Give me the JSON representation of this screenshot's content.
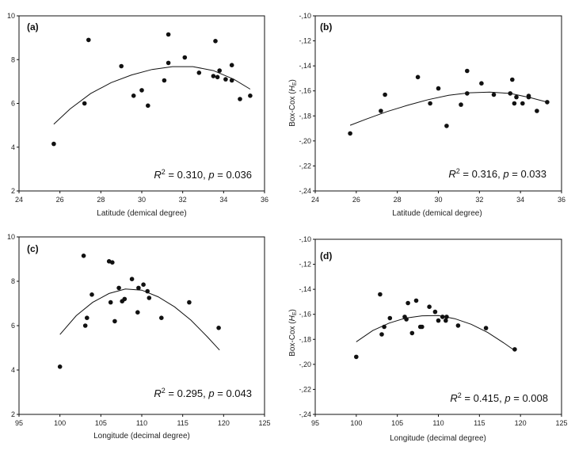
{
  "chart_data": [
    {
      "type": "scatter",
      "panel": "(a)",
      "xlabel": "Latitude (demical degree)",
      "ylabel": "",
      "xlim": [
        24,
        36
      ],
      "ylim": [
        2,
        10
      ],
      "xticks": [
        24,
        26,
        28,
        30,
        32,
        34,
        36
      ],
      "yticks": [
        2,
        4,
        6,
        8,
        10
      ],
      "ytick_labels": [
        "2",
        "4",
        "6",
        "8",
        "10"
      ],
      "annotation": {
        "r2": "0.310",
        "p": "0.036"
      },
      "points": [
        [
          25.7,
          4.15
        ],
        [
          27.2,
          6.0
        ],
        [
          27.4,
          8.9
        ],
        [
          29.0,
          7.7
        ],
        [
          29.6,
          6.35
        ],
        [
          30.0,
          6.6
        ],
        [
          30.3,
          5.9
        ],
        [
          31.1,
          7.05
        ],
        [
          31.3,
          9.15
        ],
        [
          31.3,
          7.85
        ],
        [
          32.1,
          8.1
        ],
        [
          32.8,
          7.4
        ],
        [
          33.5,
          7.25
        ],
        [
          33.6,
          8.85
        ],
        [
          33.7,
          7.2
        ],
        [
          33.8,
          7.5
        ],
        [
          34.1,
          7.1
        ],
        [
          34.4,
          7.75
        ],
        [
          34.4,
          7.05
        ],
        [
          34.8,
          6.2
        ],
        [
          35.3,
          6.35
        ]
      ],
      "fit": [
        [
          25.7,
          5.05
        ],
        [
          26.5,
          5.75
        ],
        [
          27.5,
          6.45
        ],
        [
          28.5,
          6.95
        ],
        [
          29.5,
          7.3
        ],
        [
          30.5,
          7.55
        ],
        [
          31.5,
          7.68
        ],
        [
          32.5,
          7.68
        ],
        [
          33.5,
          7.5
        ],
        [
          34.5,
          7.1
        ],
        [
          35.3,
          6.65
        ]
      ]
    },
    {
      "type": "scatter",
      "panel": "(b)",
      "xlabel": "Latitude (demical degree)",
      "ylabel": "Box-Cox (HE)",
      "xlim": [
        24,
        36
      ],
      "ylim": [
        -24,
        -10
      ],
      "xticks": [
        24,
        26,
        28,
        30,
        32,
        34,
        36
      ],
      "yticks": [
        -24,
        -22,
        -20,
        -18,
        -16,
        -14,
        -12,
        -10
      ],
      "ytick_labels": [
        "-,24",
        "-,22",
        "-,20",
        "-,18",
        "-,16",
        "-,14",
        "-,12",
        "-,10"
      ],
      "annotation": {
        "r2": "0.316",
        "p": "0.033"
      },
      "points": [
        [
          25.7,
          -19.4
        ],
        [
          27.2,
          -17.6
        ],
        [
          27.4,
          -16.3
        ],
        [
          29.0,
          -14.9
        ],
        [
          29.6,
          -17.0
        ],
        [
          30.0,
          -15.8
        ],
        [
          30.4,
          -18.8
        ],
        [
          31.1,
          -17.1
        ],
        [
          31.4,
          -14.4
        ],
        [
          31.4,
          -16.2
        ],
        [
          32.1,
          -15.4
        ],
        [
          32.7,
          -16.3
        ],
        [
          33.5,
          -16.2
        ],
        [
          33.6,
          -15.1
        ],
        [
          33.7,
          -17.0
        ],
        [
          33.8,
          -16.5
        ],
        [
          34.1,
          -17.0
        ],
        [
          34.4,
          -16.4
        ],
        [
          34.4,
          -16.5
        ],
        [
          34.8,
          -17.6
        ],
        [
          35.3,
          -16.9
        ]
      ],
      "fit": [
        [
          25.7,
          -18.75
        ],
        [
          26.5,
          -18.25
        ],
        [
          27.5,
          -17.65
        ],
        [
          28.5,
          -17.15
        ],
        [
          29.5,
          -16.7
        ],
        [
          30.5,
          -16.35
        ],
        [
          31.5,
          -16.15
        ],
        [
          32.5,
          -16.1
        ],
        [
          33.5,
          -16.2
        ],
        [
          34.5,
          -16.55
        ],
        [
          35.3,
          -16.9
        ]
      ]
    },
    {
      "type": "scatter",
      "panel": "(c)",
      "xlabel": "Longitude (decimal degree)",
      "ylabel": "",
      "xlim": [
        95,
        125
      ],
      "ylim": [
        2,
        10
      ],
      "xticks": [
        95,
        100,
        105,
        110,
        115,
        120,
        125
      ],
      "yticks": [
        2,
        4,
        6,
        8,
        10
      ],
      "ytick_labels": [
        "2",
        "4",
        "6",
        "8",
        "10"
      ],
      "annotation": {
        "r2": "0.295",
        "p": "0.043"
      },
      "points": [
        [
          100.0,
          4.15
        ],
        [
          102.9,
          9.15
        ],
        [
          103.1,
          6.0
        ],
        [
          103.3,
          6.35
        ],
        [
          103.9,
          7.4
        ],
        [
          106.0,
          8.9
        ],
        [
          106.2,
          7.05
        ],
        [
          106.4,
          8.85
        ],
        [
          106.7,
          6.2
        ],
        [
          107.2,
          7.7
        ],
        [
          107.6,
          7.1
        ],
        [
          107.9,
          7.2
        ],
        [
          108.8,
          8.1
        ],
        [
          109.5,
          6.6
        ],
        [
          109.6,
          7.7
        ],
        [
          110.2,
          7.85
        ],
        [
          110.7,
          7.55
        ],
        [
          110.9,
          7.25
        ],
        [
          112.4,
          6.35
        ],
        [
          115.8,
          7.05
        ],
        [
          119.4,
          5.9
        ]
      ],
      "fit": [
        [
          100.0,
          5.6
        ],
        [
          102.0,
          6.45
        ],
        [
          104.0,
          7.05
        ],
        [
          106.0,
          7.45
        ],
        [
          108.0,
          7.65
        ],
        [
          110.0,
          7.6
        ],
        [
          112.0,
          7.3
        ],
        [
          114.0,
          6.85
        ],
        [
          116.0,
          6.25
        ],
        [
          118.0,
          5.5
        ],
        [
          119.5,
          4.9
        ]
      ]
    },
    {
      "type": "scatter",
      "panel": "(d)",
      "xlabel": "Longitude (decimal degree)",
      "ylabel": "Box-Cox (HE)",
      "xlim": [
        95,
        125
      ],
      "ylim": [
        -24,
        -10
      ],
      "xticks": [
        95,
        100,
        105,
        110,
        115,
        120,
        125
      ],
      "yticks": [
        -24,
        -22,
        -20,
        -18,
        -16,
        -14,
        -12,
        -10
      ],
      "ytick_labels": [
        "-,24",
        "-,22",
        "-,20",
        "-,18",
        "-,16",
        "-,14",
        "-,12",
        "-,10"
      ],
      "annotation": {
        "r2": "0.415",
        "p": "0.008"
      },
      "points": [
        [
          100.0,
          -19.4
        ],
        [
          102.9,
          -14.4
        ],
        [
          103.1,
          -17.6
        ],
        [
          103.4,
          -17.0
        ],
        [
          104.1,
          -16.3
        ],
        [
          105.9,
          -16.2
        ],
        [
          106.1,
          -16.4
        ],
        [
          106.3,
          -15.1
        ],
        [
          106.8,
          -17.5
        ],
        [
          107.3,
          -14.9
        ],
        [
          107.8,
          -17.0
        ],
        [
          108.0,
          -17.0
        ],
        [
          108.9,
          -15.4
        ],
        [
          109.6,
          -15.8
        ],
        [
          110.0,
          -16.5
        ],
        [
          110.5,
          -16.2
        ],
        [
          110.9,
          -16.5
        ],
        [
          111.0,
          -16.2
        ],
        [
          112.4,
          -16.9
        ],
        [
          115.8,
          -17.1
        ],
        [
          119.3,
          -18.8
        ]
      ],
      "fit": [
        [
          100.0,
          -18.2
        ],
        [
          102.0,
          -17.3
        ],
        [
          104.0,
          -16.7
        ],
        [
          106.0,
          -16.3
        ],
        [
          108.0,
          -16.12
        ],
        [
          110.0,
          -16.1
        ],
        [
          112.0,
          -16.35
        ],
        [
          114.0,
          -16.8
        ],
        [
          116.0,
          -17.45
        ],
        [
          118.0,
          -18.3
        ],
        [
          119.3,
          -18.9
        ]
      ]
    }
  ]
}
